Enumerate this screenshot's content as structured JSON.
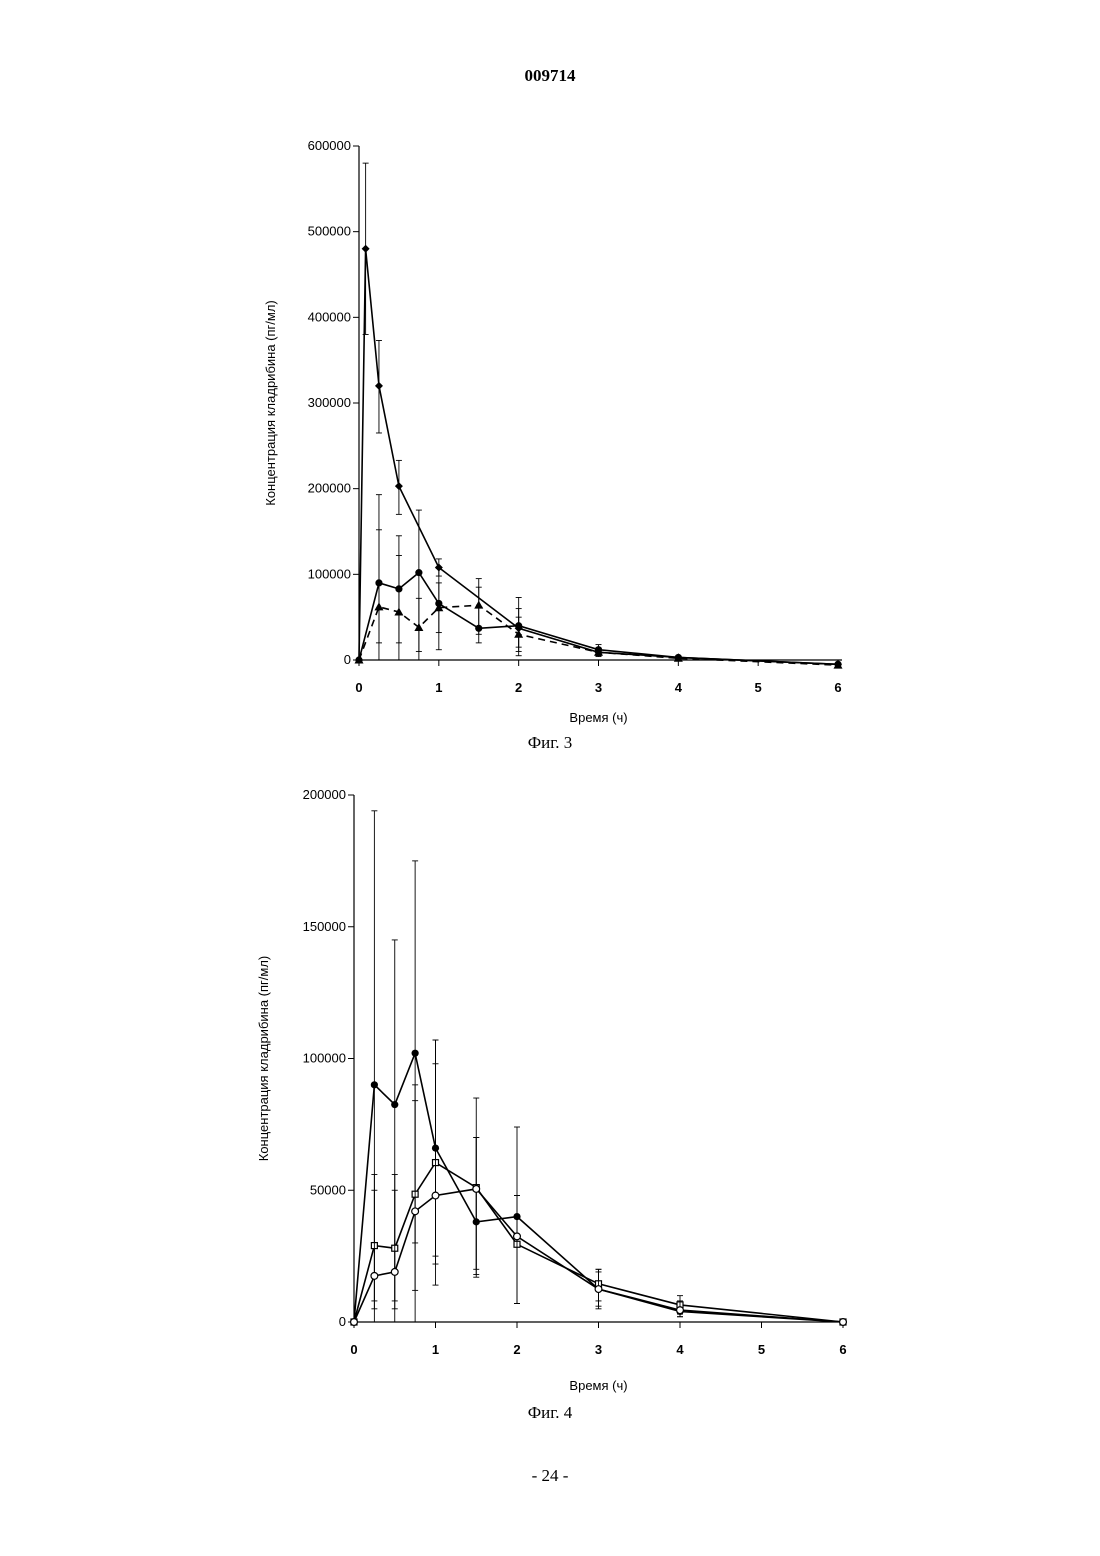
{
  "page": {
    "header_number": "009714",
    "footer": "- 24 -"
  },
  "chart_data": [
    {
      "type": "line",
      "caption": "Фиг. 3",
      "title": "",
      "xlabel": "Время (ч)",
      "ylabel": "Концентрация кладрибина (пг/мл)",
      "xlim": [
        0,
        6
      ],
      "ylim": [
        0,
        600000
      ],
      "x_ticks": [
        0,
        1,
        2,
        3,
        4,
        5,
        6
      ],
      "y_ticks": [
        0,
        100000,
        200000,
        300000,
        400000,
        500000,
        600000
      ],
      "grid": false,
      "legend": "none",
      "series": [
        {
          "marker": "diamond",
          "linestyle": "solid",
          "x": [
            0,
            0.083,
            0.25,
            0.5,
            1,
            2,
            3,
            4,
            6
          ],
          "y": [
            0,
            480000,
            320000,
            203000,
            108000,
            37000,
            9000,
            3000,
            -5000
          ],
          "err_low": [
            0,
            380000,
            265000,
            170000,
            98000,
            15000,
            5000,
            1500,
            0
          ],
          "err_high": [
            0,
            580000,
            373000,
            233000,
            118000,
            60000,
            14000,
            4500,
            0
          ]
        },
        {
          "marker": "circle",
          "linestyle": "solid",
          "x": [
            0,
            0.25,
            0.5,
            0.75,
            1,
            1.5,
            2,
            3,
            4,
            6
          ],
          "y": [
            0,
            90000,
            83000,
            102000,
            66000,
            37000,
            40000,
            12000,
            3000,
            -5000
          ],
          "err_low": [
            0,
            0,
            0,
            0,
            12000,
            20000,
            5000,
            6000,
            1500,
            0
          ],
          "err_high": [
            0,
            193000,
            145000,
            175000,
            107000,
            85000,
            73000,
            18000,
            4500,
            0
          ]
        },
        {
          "marker": "triangle",
          "linestyle": "dashed",
          "x": [
            0,
            0.25,
            0.5,
            0.75,
            1,
            1.5,
            2,
            3,
            4,
            6
          ],
          "y": [
            0,
            62000,
            56000,
            38000,
            61000,
            64000,
            30000,
            9000,
            2000,
            -6000
          ],
          "err_low": [
            0,
            20000,
            20000,
            10000,
            32000,
            30000,
            10000,
            4000,
            800,
            0
          ],
          "err_high": [
            0,
            152000,
            122000,
            72000,
            90000,
            95000,
            50000,
            14000,
            3500,
            0
          ]
        }
      ]
    },
    {
      "type": "line",
      "caption": "Фиг. 4",
      "title": "",
      "xlabel": "Время (ч)",
      "ylabel": "Концентрация кладрибина (пг/мл)",
      "xlim": [
        0,
        6
      ],
      "ylim": [
        0,
        200000
      ],
      "x_ticks": [
        0,
        1,
        2,
        3,
        4,
        5,
        6
      ],
      "y_ticks": [
        0,
        50000,
        100000,
        150000,
        200000
      ],
      "grid": false,
      "legend": "none",
      "series": [
        {
          "marker": "circle-filled",
          "linestyle": "solid",
          "x": [
            0,
            0.25,
            0.5,
            0.75,
            1,
            1.5,
            2,
            3,
            4,
            6
          ],
          "y": [
            0,
            90000,
            82500,
            102000,
            66000,
            38000,
            40000,
            12500,
            4000,
            0
          ],
          "err_low": [
            0,
            0,
            0,
            0,
            25000,
            18000,
            7000,
            6000,
            2000,
            0
          ],
          "err_high": [
            0,
            194000,
            145000,
            175000,
            107000,
            85000,
            74000,
            19000,
            6000,
            0
          ]
        },
        {
          "marker": "square-open",
          "linestyle": "solid",
          "x": [
            0,
            0.25,
            0.5,
            0.75,
            1,
            1.5,
            2,
            3,
            4,
            6
          ],
          "y": [
            0,
            29000,
            28000,
            48500,
            60500,
            51000,
            29500,
            14500,
            6500,
            0
          ],
          "err_low": [
            0,
            8000,
            8000,
            30000,
            14000,
            20000,
            7000,
            8000,
            3000,
            0
          ],
          "err_high": [
            0,
            56000,
            56000,
            90000,
            107000,
            70000,
            48000,
            20000,
            10000,
            0
          ]
        },
        {
          "marker": "circle-open",
          "linestyle": "solid",
          "x": [
            0,
            0.25,
            0.5,
            0.75,
            1,
            1.5,
            2,
            3,
            4,
            6
          ],
          "y": [
            0,
            17500,
            19000,
            42000,
            48000,
            50500,
            32500,
            12500,
            4500,
            0
          ],
          "err_low": [
            0,
            5000,
            5000,
            12000,
            22000,
            17000,
            7000,
            5000,
            2000,
            0
          ],
          "err_high": [
            0,
            50000,
            50000,
            84000,
            98000,
            70000,
            48000,
            20000,
            8000,
            0
          ]
        }
      ]
    }
  ]
}
